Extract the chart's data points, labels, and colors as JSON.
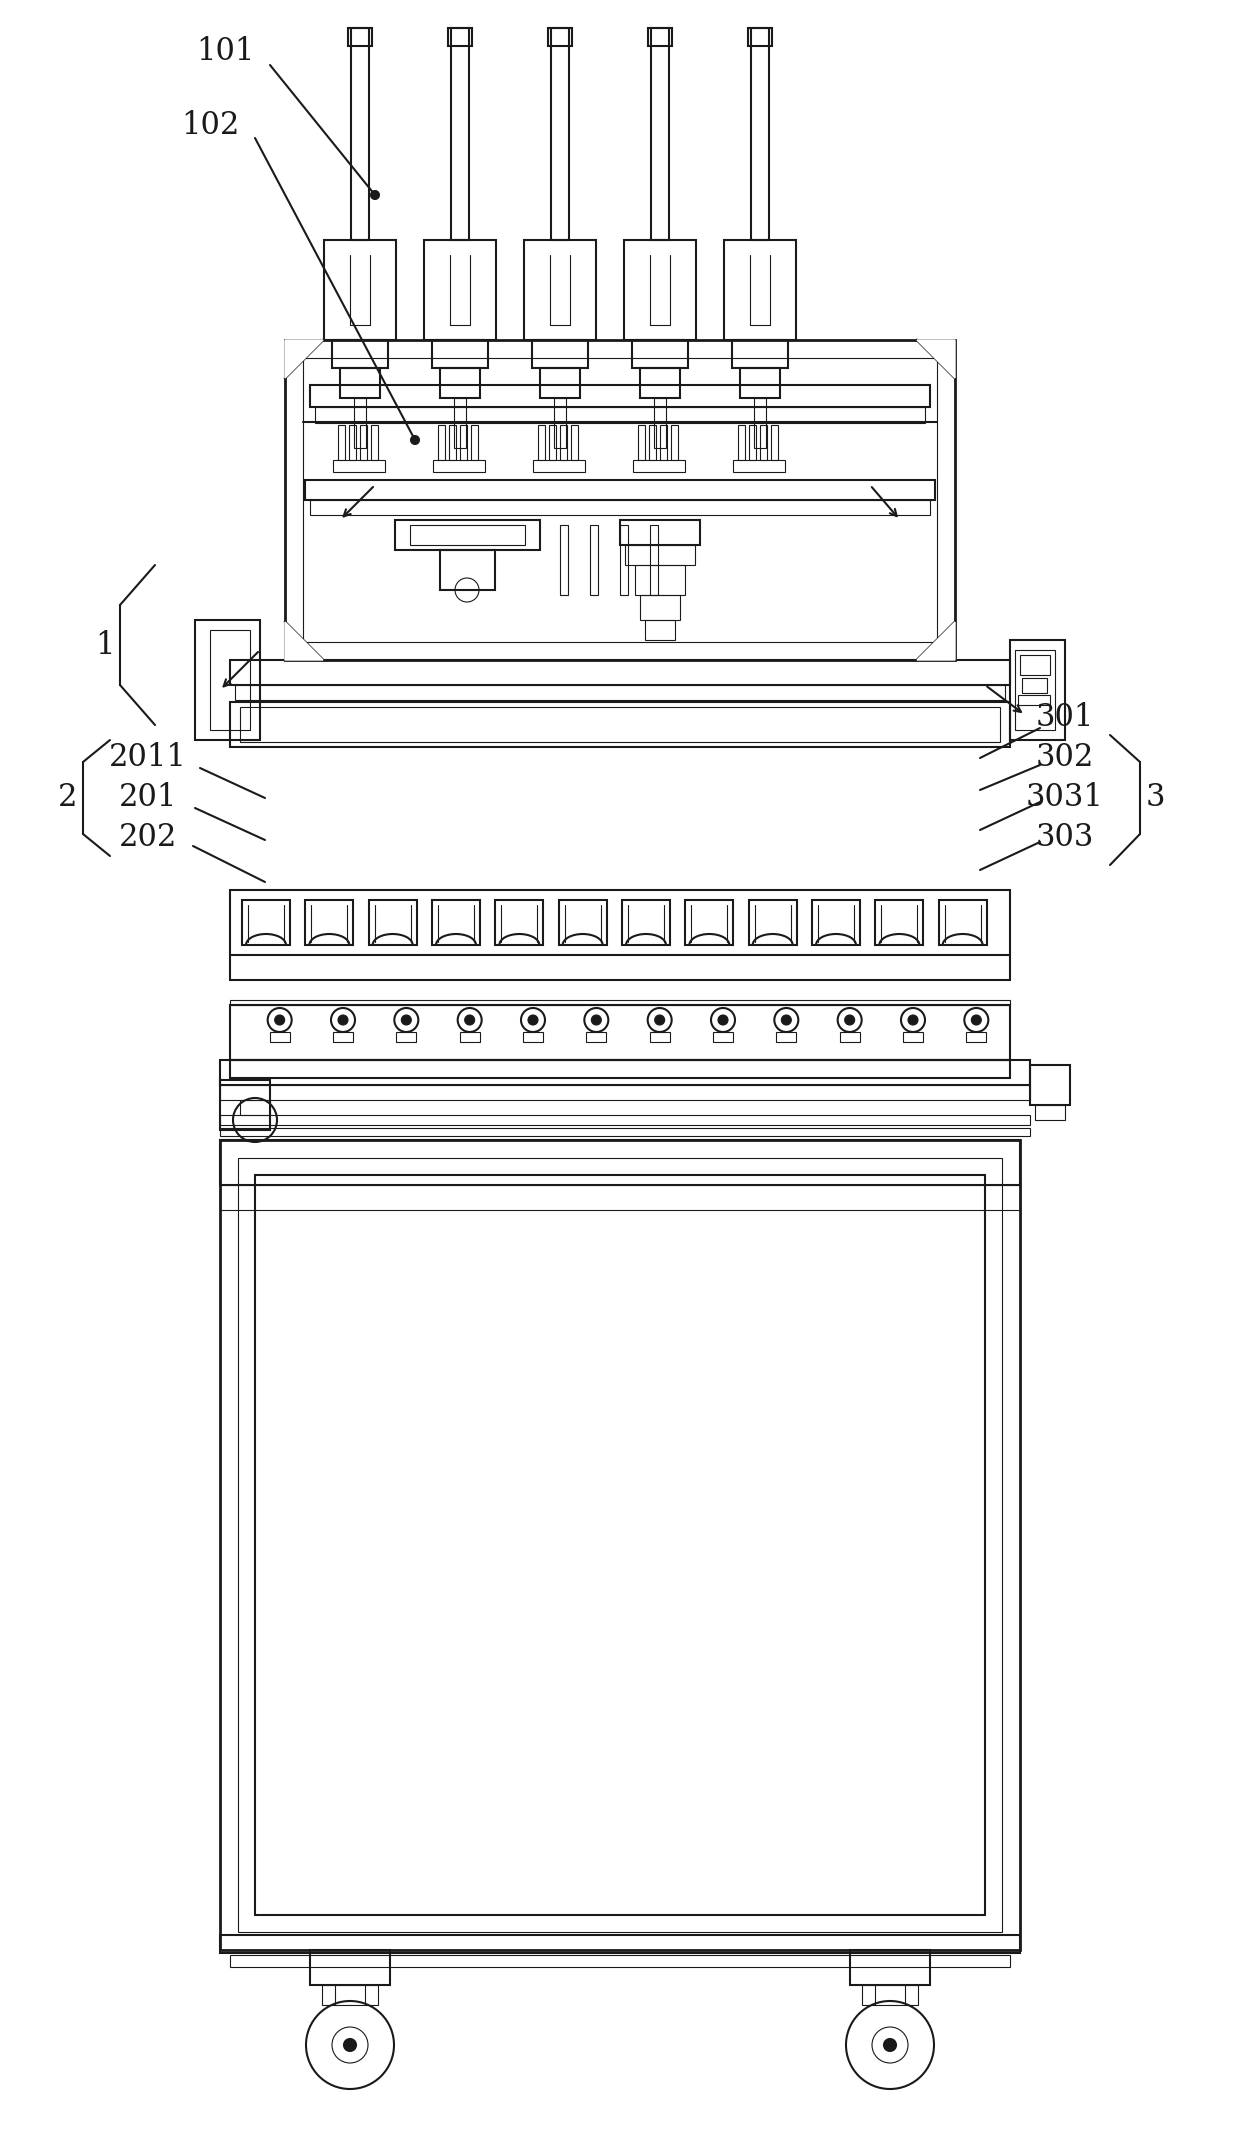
{
  "bg_color": "#ffffff",
  "lc": "#1a1a1a",
  "lw": 1.5,
  "lw_thin": 0.8,
  "lw_thick": 2.0,
  "fig_width": 12.4,
  "fig_height": 21.35
}
